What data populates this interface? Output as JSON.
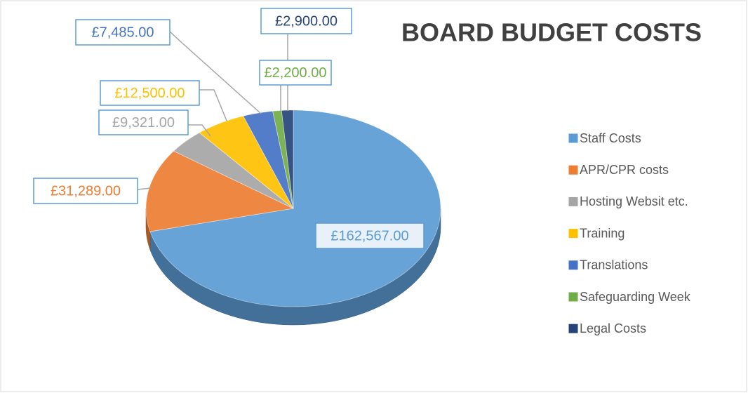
{
  "chart_data": {
    "type": "pie",
    "title": "BOARD BUDGET COSTS",
    "categories": [
      "Staff Costs",
      "APR/CPR costs",
      "Hosting Websit etc.",
      "Training",
      "Translations",
      "Safeguarding Week",
      "Legal Costs"
    ],
    "values": [
      162567,
      31289,
      9321,
      12500,
      7485,
      2200,
      2900
    ],
    "value_labels": [
      "£162,567.00",
      "£31,289.00",
      "£9,321.00",
      "£12,500.00",
      "£7,485.00",
      "£2,200.00",
      "£2,900.00"
    ],
    "colors": [
      "#5b9bd5",
      "#ed7d31",
      "#a5a5a5",
      "#ffc000",
      "#4472c4",
      "#70ad47",
      "#264478"
    ],
    "legend": "right"
  }
}
